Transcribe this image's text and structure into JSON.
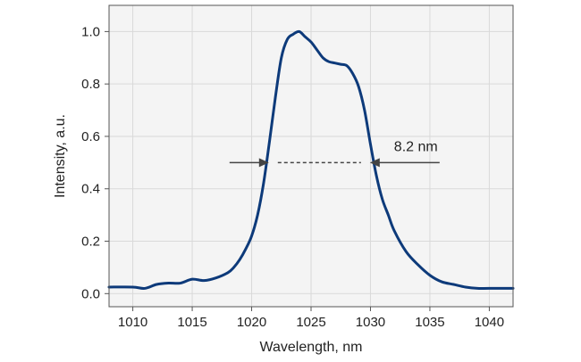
{
  "chart_data": {
    "type": "line",
    "xlabel": "Wavelength, nm",
    "ylabel": "Intensity, a.u.",
    "xlim": [
      1008,
      1042
    ],
    "ylim": [
      -0.05,
      1.1
    ],
    "x_ticks": [
      1010,
      1015,
      1020,
      1025,
      1030,
      1035,
      1040
    ],
    "y_ticks": [
      0.0,
      0.2,
      0.4,
      0.6,
      0.8,
      1.0
    ],
    "x_tick_labels": [
      "1010",
      "1015",
      "1020",
      "1025",
      "1030",
      "1035",
      "1040"
    ],
    "y_tick_labels": [
      "0.0",
      "0.2",
      "0.4",
      "0.6",
      "0.8",
      "1.0"
    ],
    "grid": true,
    "colors": {
      "line": "#0d3a7a",
      "grid": "#d9d9d9",
      "background": "#f4f4f4",
      "annotation": "#444444"
    },
    "series": [
      {
        "x": [
          1008,
          1010,
          1011,
          1012,
          1013,
          1014,
          1015,
          1016,
          1017,
          1018,
          1018.5,
          1019,
          1019.5,
          1020,
          1020.5,
          1021,
          1021.5,
          1022,
          1022.5,
          1023,
          1023.5,
          1024,
          1024.5,
          1025,
          1025.5,
          1026,
          1026.5,
          1027,
          1027.5,
          1028,
          1028.5,
          1029,
          1029.5,
          1030,
          1030.5,
          1031,
          1031.5,
          1032,
          1033,
          1034,
          1035,
          1036,
          1037,
          1038,
          1039,
          1040,
          1042
        ],
        "y": [
          0.025,
          0.025,
          0.02,
          0.035,
          0.04,
          0.04,
          0.055,
          0.05,
          0.06,
          0.08,
          0.1,
          0.13,
          0.17,
          0.22,
          0.3,
          0.42,
          0.58,
          0.75,
          0.9,
          0.97,
          0.99,
          1.0,
          0.98,
          0.96,
          0.93,
          0.9,
          0.885,
          0.88,
          0.875,
          0.87,
          0.84,
          0.79,
          0.7,
          0.57,
          0.45,
          0.36,
          0.3,
          0.24,
          0.16,
          0.11,
          0.07,
          0.045,
          0.035,
          0.025,
          0.02,
          0.02,
          0.02
        ]
      }
    ],
    "annotations": [
      {
        "label": "8.2 nm",
        "type": "fwhm",
        "x_left": 1021.6,
        "x_right": 1029.8,
        "y": 0.5
      }
    ]
  }
}
